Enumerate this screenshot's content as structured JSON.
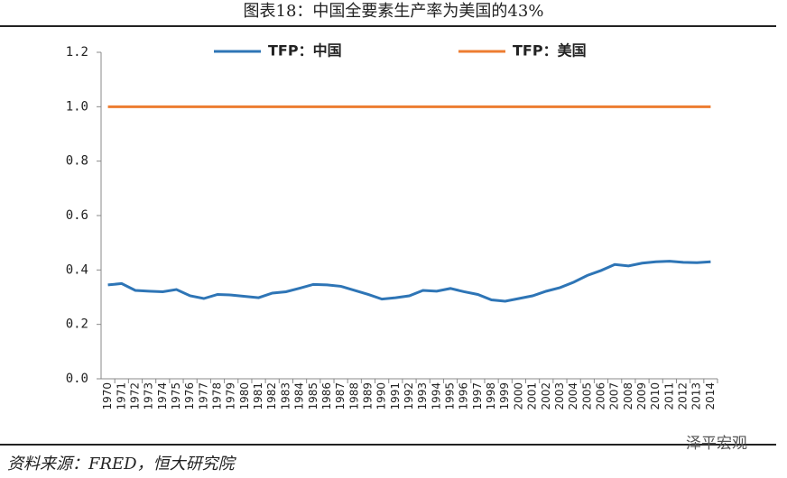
{
  "chart_data": {
    "type": "line",
    "title": "图表18：中国全要素生产率为美国的43%",
    "categories": [
      "1970",
      "1971",
      "1972",
      "1973",
      "1974",
      "1975",
      "1976",
      "1977",
      "1978",
      "1979",
      "1980",
      "1981",
      "1982",
      "1983",
      "1984",
      "1985",
      "1986",
      "1987",
      "1988",
      "1989",
      "1990",
      "1991",
      "1992",
      "1993",
      "1994",
      "1995",
      "1996",
      "1997",
      "1998",
      "1999",
      "2000",
      "2001",
      "2002",
      "2003",
      "2004",
      "2005",
      "2006",
      "2007",
      "2008",
      "2009",
      "2010",
      "2011",
      "2012",
      "2013",
      "2014"
    ],
    "series": [
      {
        "name": "TFP：中国",
        "color": "#2e75b6",
        "values": [
          0.345,
          0.35,
          0.325,
          0.322,
          0.32,
          0.328,
          0.305,
          0.295,
          0.31,
          0.308,
          0.303,
          0.298,
          0.315,
          0.32,
          0.333,
          0.347,
          0.345,
          0.34,
          0.325,
          0.31,
          0.293,
          0.298,
          0.305,
          0.325,
          0.322,
          0.332,
          0.32,
          0.31,
          0.29,
          0.285,
          0.295,
          0.305,
          0.322,
          0.335,
          0.355,
          0.38,
          0.398,
          0.42,
          0.415,
          0.425,
          0.43,
          0.432,
          0.428,
          0.427,
          0.43
        ]
      },
      {
        "name": "TFP：美国",
        "color": "#ed7d31",
        "values": [
          1,
          1,
          1,
          1,
          1,
          1,
          1,
          1,
          1,
          1,
          1,
          1,
          1,
          1,
          1,
          1,
          1,
          1,
          1,
          1,
          1,
          1,
          1,
          1,
          1,
          1,
          1,
          1,
          1,
          1,
          1,
          1,
          1,
          1,
          1,
          1,
          1,
          1,
          1,
          1,
          1,
          1,
          1,
          1,
          1
        ]
      }
    ],
    "ylim": [
      0,
      1.2
    ],
    "yticks": [
      {
        "value": 0,
        "label": "0.0"
      },
      0.2,
      0.4,
      0.6,
      0.8,
      {
        "value": 1,
        "label": "1.0"
      },
      1.2
    ],
    "legend": "top",
    "source": "资料来源：FRED，恒大研究院",
    "watermark": "泽平宏观"
  }
}
